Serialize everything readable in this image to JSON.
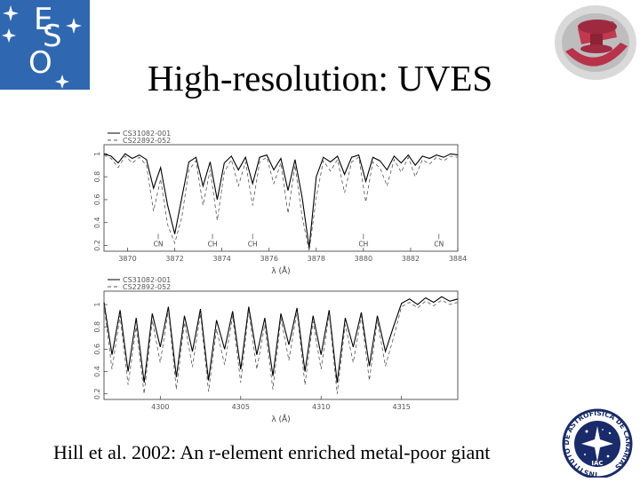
{
  "slide": {
    "title": "High-resolution: UVES",
    "caption": "Hill et al. 2002:  An r-element enriched metal-poor giant"
  },
  "logos": {
    "eso": {
      "letters": [
        "E",
        "S",
        "O"
      ],
      "color": "#2f67b1"
    },
    "iac_top": {
      "icon": "telescope-logo-icon"
    },
    "iac_bottom": {
      "icon": "iac-seal-icon",
      "text": "INSTITUTO DE ASTROFISICA DE CANARIAS",
      "monogram": "IAC"
    }
  },
  "chart_data": [
    {
      "type": "line",
      "xlabel": "λ (Å)",
      "ylabel": "",
      "xlim": [
        3869,
        3884
      ],
      "ylim": [
        0.15,
        1.08
      ],
      "xticks": [
        3870,
        3872,
        3874,
        3876,
        3878,
        3880,
        3882,
        3884
      ],
      "xtick_labels": [
        "3870",
        "3872",
        "3874",
        "3876",
        "3878",
        "3880",
        "3882",
        "3884"
      ],
      "yticks": [
        0.2,
        0.4,
        0.6,
        0.8,
        1
      ],
      "ytick_labels": [
        "0.2",
        "0.4",
        "0.6",
        "0.8",
        "1"
      ],
      "legend": "top-left",
      "annotations": [
        {
          "label": "CN",
          "x": 3871.3,
          "y": 0.24
        },
        {
          "label": "CH",
          "x": 3873.6,
          "y": 0.24
        },
        {
          "label": "CH",
          "x": 3875.3,
          "y": 0.24
        },
        {
          "label": "CH",
          "x": 3880.0,
          "y": 0.24
        },
        {
          "label": "CN",
          "x": 3883.2,
          "y": 0.24
        }
      ],
      "series": [
        {
          "name": "CS31082-001",
          "color": "#000000",
          "dash": "none",
          "x": [
            3869.0,
            3869.3,
            3869.6,
            3869.9,
            3870.2,
            3870.5,
            3870.8,
            3871.1,
            3871.4,
            3871.7,
            3872.0,
            3872.3,
            3872.6,
            3872.9,
            3873.2,
            3873.5,
            3873.8,
            3874.1,
            3874.4,
            3874.7,
            3875.0,
            3875.3,
            3875.6,
            3875.9,
            3876.2,
            3876.5,
            3876.8,
            3877.1,
            3877.4,
            3877.7,
            3878.0,
            3878.3,
            3878.6,
            3878.9,
            3879.2,
            3879.5,
            3879.8,
            3880.1,
            3880.4,
            3880.7,
            3881.0,
            3881.3,
            3881.6,
            3881.9,
            3882.2,
            3882.5,
            3882.8,
            3883.1,
            3883.4,
            3883.7,
            3884.0
          ],
          "y": [
            1.0,
            0.98,
            0.92,
            1.0,
            0.96,
            0.99,
            0.95,
            0.7,
            0.88,
            0.55,
            0.3,
            0.62,
            0.93,
            0.97,
            0.72,
            0.93,
            0.6,
            0.92,
            0.98,
            0.86,
            0.97,
            0.74,
            0.97,
            0.99,
            0.86,
            0.96,
            0.68,
            0.95,
            0.62,
            0.18,
            0.8,
            0.97,
            0.93,
            0.98,
            0.82,
            0.97,
            0.99,
            0.76,
            0.97,
            0.94,
            0.86,
            0.98,
            0.92,
            0.99,
            0.9,
            0.98,
            0.96,
            0.99,
            0.97,
            1.0,
            0.99
          ]
        },
        {
          "name": "CS22892-052",
          "color": "#555555",
          "dash": "4,3",
          "x": [
            3869.0,
            3869.3,
            3869.6,
            3869.9,
            3870.2,
            3870.5,
            3870.8,
            3871.1,
            3871.4,
            3871.7,
            3872.0,
            3872.3,
            3872.6,
            3872.9,
            3873.2,
            3873.5,
            3873.8,
            3874.1,
            3874.4,
            3874.7,
            3875.0,
            3875.3,
            3875.6,
            3875.9,
            3876.2,
            3876.5,
            3876.8,
            3877.1,
            3877.4,
            3877.7,
            3878.0,
            3878.3,
            3878.6,
            3878.9,
            3879.2,
            3879.5,
            3879.8,
            3880.1,
            3880.4,
            3880.7,
            3881.0,
            3881.3,
            3881.6,
            3881.9,
            3882.2,
            3882.5,
            3882.8,
            3883.1,
            3883.4,
            3883.7,
            3884.0
          ],
          "y": [
            0.99,
            0.96,
            0.88,
            0.98,
            0.92,
            0.97,
            0.9,
            0.5,
            0.78,
            0.38,
            0.22,
            0.45,
            0.86,
            0.94,
            0.55,
            0.86,
            0.42,
            0.84,
            0.95,
            0.72,
            0.93,
            0.55,
            0.93,
            0.97,
            0.74,
            0.92,
            0.48,
            0.9,
            0.45,
            0.15,
            0.62,
            0.94,
            0.85,
            0.95,
            0.66,
            0.93,
            0.97,
            0.58,
            0.93,
            0.88,
            0.72,
            0.95,
            0.84,
            0.97,
            0.8,
            0.95,
            0.91,
            0.97,
            0.94,
            0.98,
            0.97
          ]
        }
      ]
    },
    {
      "type": "line",
      "xlabel": "λ (Å)",
      "ylabel": "",
      "xlim": [
        4296.5,
        4318.5
      ],
      "ylim": [
        0.15,
        1.12
      ],
      "xticks": [
        4300,
        4305,
        4310,
        4315
      ],
      "xtick_labels": [
        "4300",
        "4305",
        "4310",
        "4315"
      ],
      "yticks": [
        0.2,
        0.4,
        0.6,
        0.8,
        1
      ],
      "ytick_labels": [
        "0.2",
        "0.4",
        "0.6",
        "0.8",
        "1"
      ],
      "legend": "top-left",
      "series": [
        {
          "name": "CS31082-001",
          "color": "#000000",
          "dash": "none",
          "x": [
            4296.5,
            4297.0,
            4297.5,
            4298.0,
            4298.5,
            4299.0,
            4299.5,
            4300.0,
            4300.5,
            4301.0,
            4301.5,
            4302.0,
            4302.5,
            4303.0,
            4303.5,
            4304.0,
            4304.5,
            4305.0,
            4305.5,
            4306.0,
            4306.5,
            4307.0,
            4307.5,
            4308.0,
            4308.5,
            4309.0,
            4309.5,
            4310.0,
            4310.5,
            4311.0,
            4311.5,
            4312.0,
            4312.5,
            4313.0,
            4313.5,
            4314.0,
            4314.5,
            4315.0,
            4315.5,
            4316.0,
            4316.5,
            4317.0,
            4317.5,
            4318.0,
            4318.5
          ],
          "y": [
            1.02,
            0.55,
            0.95,
            0.4,
            0.88,
            0.3,
            0.92,
            0.62,
            0.98,
            0.35,
            0.9,
            0.58,
            0.96,
            0.32,
            0.86,
            0.6,
            0.94,
            0.42,
            0.98,
            0.55,
            0.88,
            0.36,
            0.92,
            0.64,
            0.97,
            0.4,
            0.9,
            0.55,
            0.95,
            0.3,
            0.88,
            0.62,
            0.93,
            0.45,
            0.9,
            0.58,
            0.8,
            1.01,
            1.05,
            1.0,
            1.06,
            1.02,
            1.07,
            1.03,
            1.05
          ]
        },
        {
          "name": "CS22892-052",
          "color": "#555555",
          "dash": "4,3",
          "x": [
            4296.5,
            4297.0,
            4297.5,
            4298.0,
            4298.5,
            4299.0,
            4299.5,
            4300.0,
            4300.5,
            4301.0,
            4301.5,
            4302.0,
            4302.5,
            4303.0,
            4303.5,
            4304.0,
            4304.5,
            4305.0,
            4305.5,
            4306.0,
            4306.5,
            4307.0,
            4307.5,
            4308.0,
            4308.5,
            4309.0,
            4309.5,
            4310.0,
            4310.5,
            4311.0,
            4311.5,
            4312.0,
            4312.5,
            4313.0,
            4313.5,
            4314.0,
            4314.5,
            4315.0,
            4315.5,
            4316.0,
            4316.5,
            4317.0,
            4317.5,
            4318.0,
            4318.5
          ],
          "y": [
            1.0,
            0.42,
            0.9,
            0.28,
            0.8,
            0.2,
            0.86,
            0.48,
            0.95,
            0.24,
            0.84,
            0.44,
            0.92,
            0.22,
            0.78,
            0.46,
            0.9,
            0.3,
            0.95,
            0.42,
            0.82,
            0.24,
            0.88,
            0.5,
            0.94,
            0.28,
            0.85,
            0.42,
            0.92,
            0.2,
            0.82,
            0.48,
            0.9,
            0.32,
            0.86,
            0.45,
            0.7,
            0.98,
            1.02,
            0.97,
            1.03,
            0.99,
            1.04,
            1.0,
            1.02
          ]
        }
      ]
    }
  ]
}
